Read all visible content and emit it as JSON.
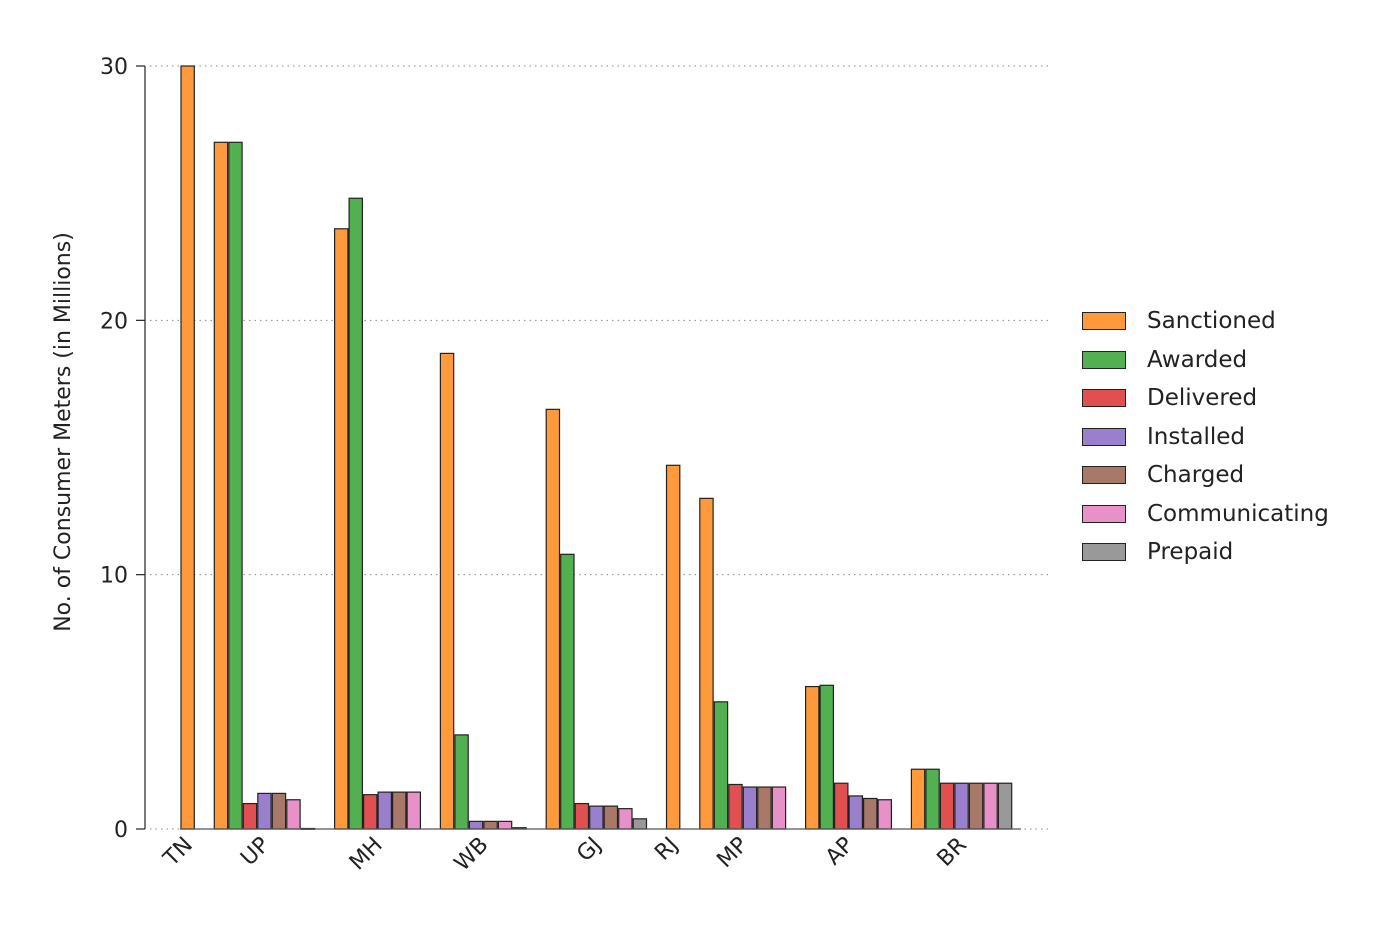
{
  "chart_data": {
    "type": "bar",
    "ylabel": "No. of Consumer Meters (in Millions)",
    "xlabel": "",
    "ylim": [
      0,
      30
    ],
    "yticks": [
      0,
      10,
      20,
      30
    ],
    "grid": "horizontal-dotted",
    "legend_position": "right",
    "categories": [
      "TN",
      "UP",
      "MH",
      "WB",
      "GJ",
      "RJ",
      "MP",
      "AP",
      "BR"
    ],
    "series": [
      {
        "name": "Sanctioned",
        "color": "#ff9a3c",
        "values": [
          30.0,
          27.0,
          23.6,
          18.7,
          16.5,
          14.3,
          13.0,
          5.6,
          2.35
        ]
      },
      {
        "name": "Awarded",
        "color": "#52b050",
        "values": [
          0,
          27.0,
          24.8,
          3.7,
          10.8,
          0,
          5.0,
          5.65,
          2.35
        ]
      },
      {
        "name": "Delivered",
        "color": "#e05050",
        "values": [
          0,
          1.0,
          1.35,
          0,
          1.0,
          0,
          1.75,
          1.8,
          1.8
        ]
      },
      {
        "name": "Installed",
        "color": "#9a80cc",
        "values": [
          0,
          1.4,
          1.45,
          0.3,
          0.9,
          0,
          1.65,
          1.3,
          1.8
        ]
      },
      {
        "name": "Charged",
        "color": "#a87868",
        "values": [
          0,
          1.4,
          1.45,
          0.3,
          0.9,
          0,
          1.65,
          1.2,
          1.8
        ]
      },
      {
        "name": "Communicating",
        "color": "#e890c8",
        "values": [
          0,
          1.15,
          1.45,
          0.3,
          0.8,
          0,
          1.65,
          1.15,
          1.8
        ]
      },
      {
        "name": "Prepaid",
        "color": "#999999",
        "values": [
          0,
          0.02,
          0,
          0.05,
          0.4,
          0,
          0,
          0,
          1.8
        ]
      }
    ]
  }
}
